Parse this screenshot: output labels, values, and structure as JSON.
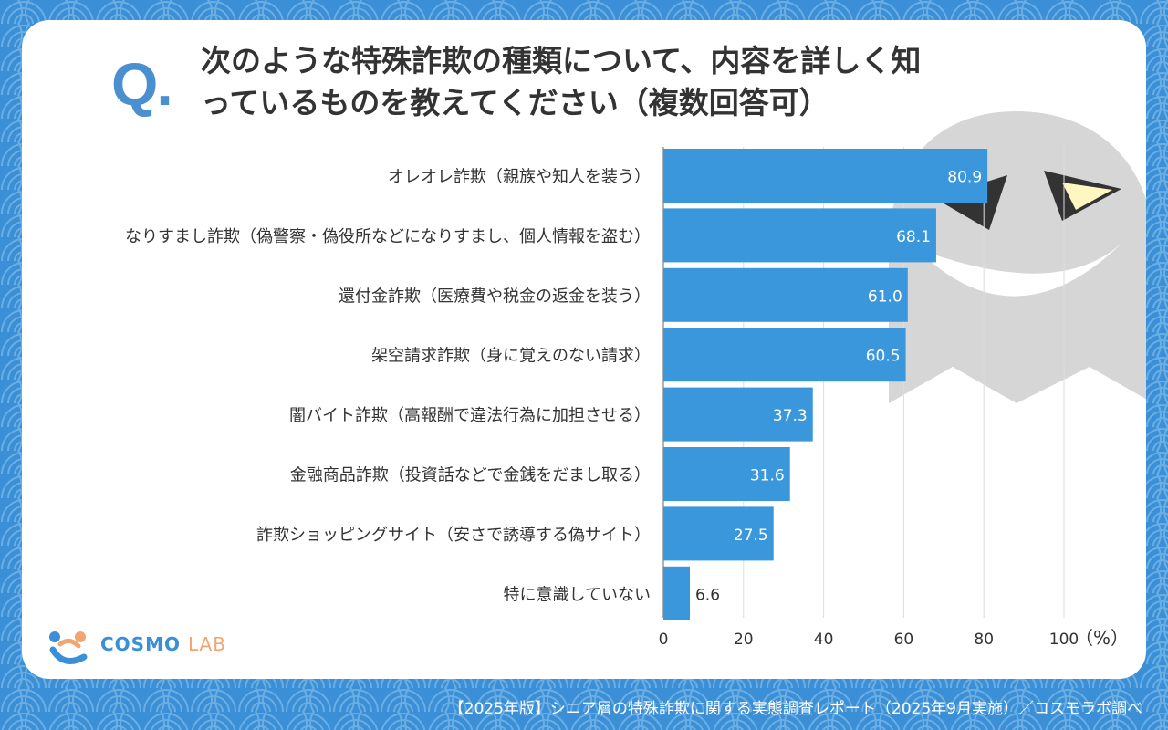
{
  "header": {
    "q_mark": "Q.",
    "title_line1": "次のような特殊詐欺の種類について、内容を詳しく知",
    "title_line2": "っているものを教えてください（複数回答可）"
  },
  "chart_data": {
    "type": "bar",
    "orientation": "horizontal",
    "categories": [
      "オレオレ詐欺（親族や知人を装う）",
      "なりすまし詐欺（偽警察・偽役所などになりすまし、個人情報を盗む）",
      "還付金詐欺（医療費や税金の返金を装う）",
      "架空請求詐欺（身に覚えのない請求）",
      "闇バイト詐欺（高報酬で違法行為に加担させる）",
      "金融商品詐欺（投資話などで金銭をだまし取る）",
      "詐欺ショッピングサイト（安さで誘導する偽サイト）",
      "特に意識していない"
    ],
    "values": [
      80.9,
      68.1,
      61.0,
      60.5,
      37.3,
      31.6,
      27.5,
      6.6
    ],
    "value_labels": [
      "80.9",
      "68.1",
      "61.0",
      "60.5",
      "37.3",
      "31.6",
      "27.5",
      "6.6"
    ],
    "xlim": [
      0,
      100
    ],
    "xticks": [
      "0",
      "20",
      "40",
      "60",
      "80",
      "100"
    ],
    "unit_label": "（%）",
    "bar_color": "#3a97dc",
    "grid": true
  },
  "logo": {
    "main": "COSMO ",
    "sub": "LAB"
  },
  "footer": {
    "text": "【2025年版】シニア層の特殊詐欺に関する実態調査レポート（2025年9月実施）／コスモラボ調べ"
  },
  "colors": {
    "background": "#3b8fd6",
    "accent": "#4a8fd0",
    "logo_orange": "#f0a572",
    "ghost": "#d6d6d6"
  }
}
